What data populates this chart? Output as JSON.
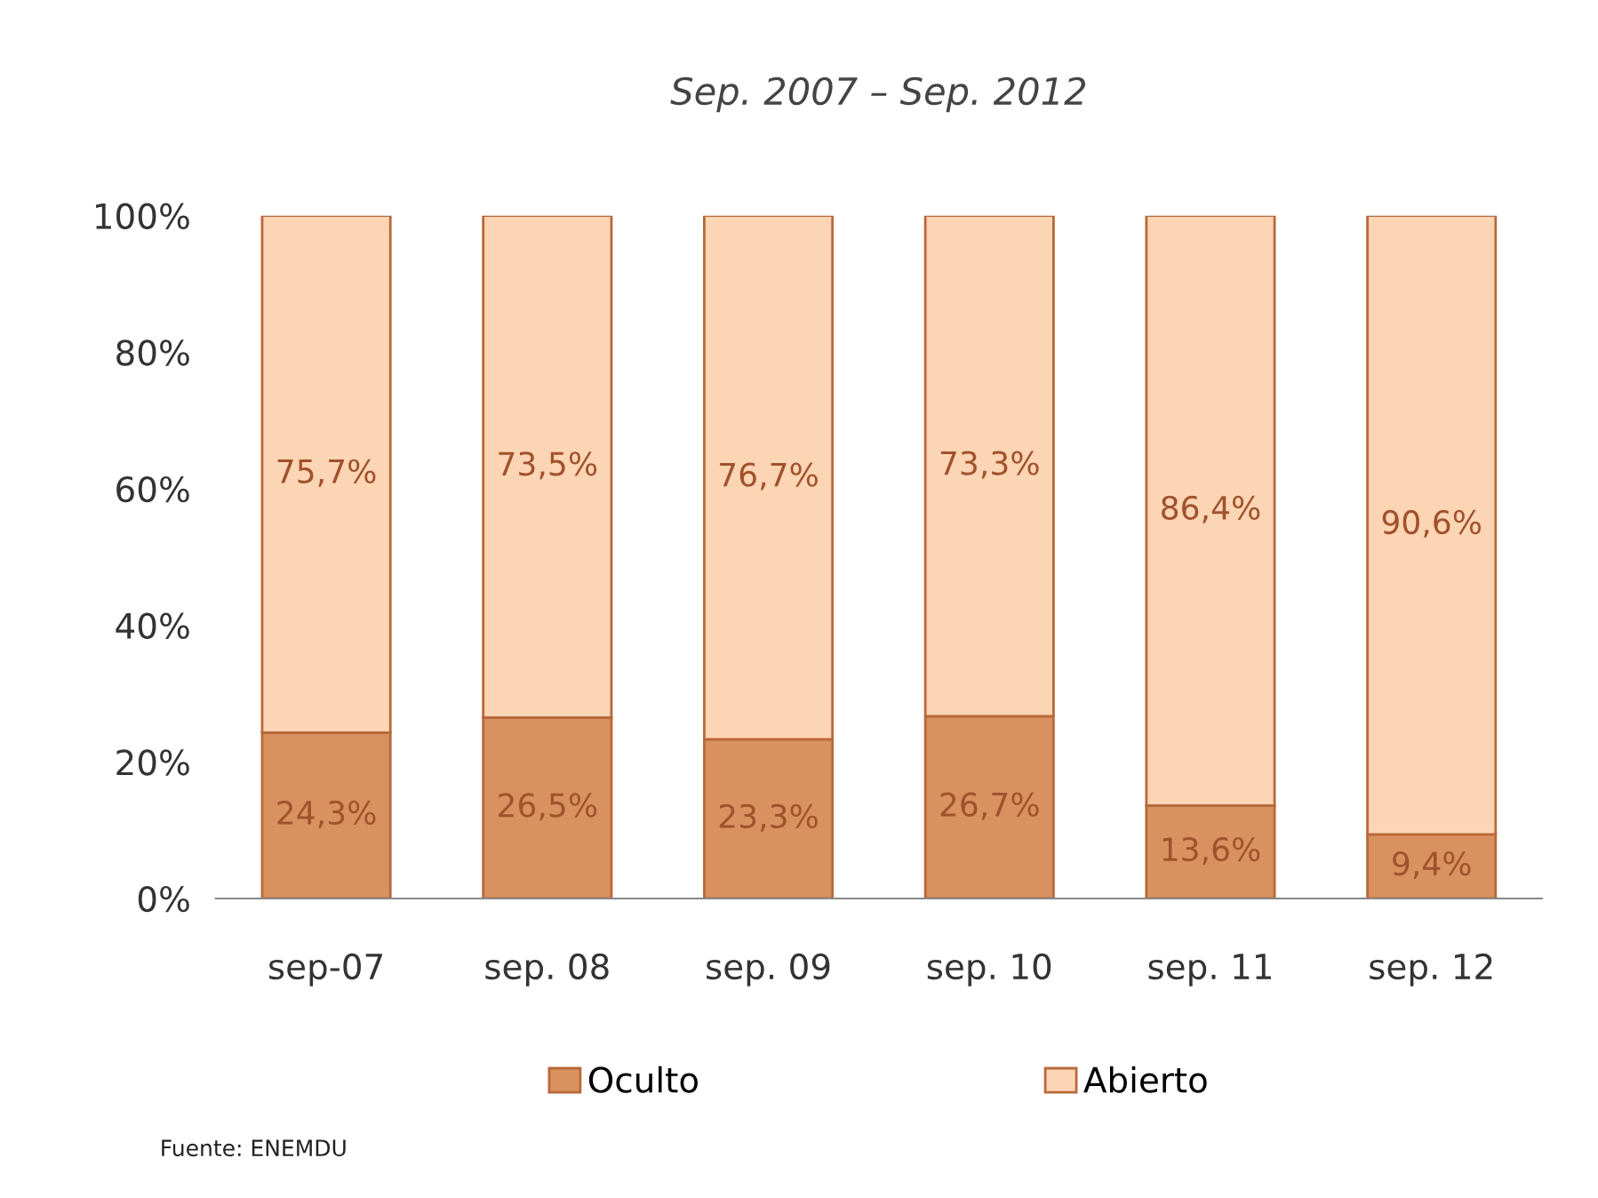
{
  "chart_data": {
    "type": "bar",
    "stacked": true,
    "title": "Sep. 2007 – Sep. 2012",
    "categories": [
      "sep-07",
      "sep. 08",
      "sep. 09",
      "sep. 10",
      "sep. 11",
      "sep. 12"
    ],
    "series": [
      {
        "name": "Oculto",
        "color": "#d9925f",
        "values": [
          24.3,
          26.5,
          23.3,
          26.7,
          13.6,
          9.4
        ],
        "value_labels": [
          "24,3%",
          "26,5%",
          "23,3%",
          "26,7%",
          "13,6%",
          "9,4%"
        ]
      },
      {
        "name": "Abierto",
        "color": "#fcd5b4",
        "values": [
          75.7,
          73.5,
          76.7,
          73.3,
          86.4,
          90.6
        ],
        "value_labels": [
          "75,7%",
          "73,5%",
          "76,7%",
          "73,3%",
          "86,4%",
          "90,6%"
        ]
      }
    ],
    "ylim": [
      0,
      100
    ],
    "yticks": [
      {
        "value": 0,
        "label": "0%"
      },
      {
        "value": 20,
        "label": "20%"
      },
      {
        "value": 40,
        "label": "40%"
      },
      {
        "value": 60,
        "label": "60%"
      },
      {
        "value": 80,
        "label": "80%"
      },
      {
        "value": 100,
        "label": "100%"
      }
    ],
    "grid": false,
    "legend": "bottom",
    "annotations": [
      "Fuente: ENEMDU"
    ]
  }
}
